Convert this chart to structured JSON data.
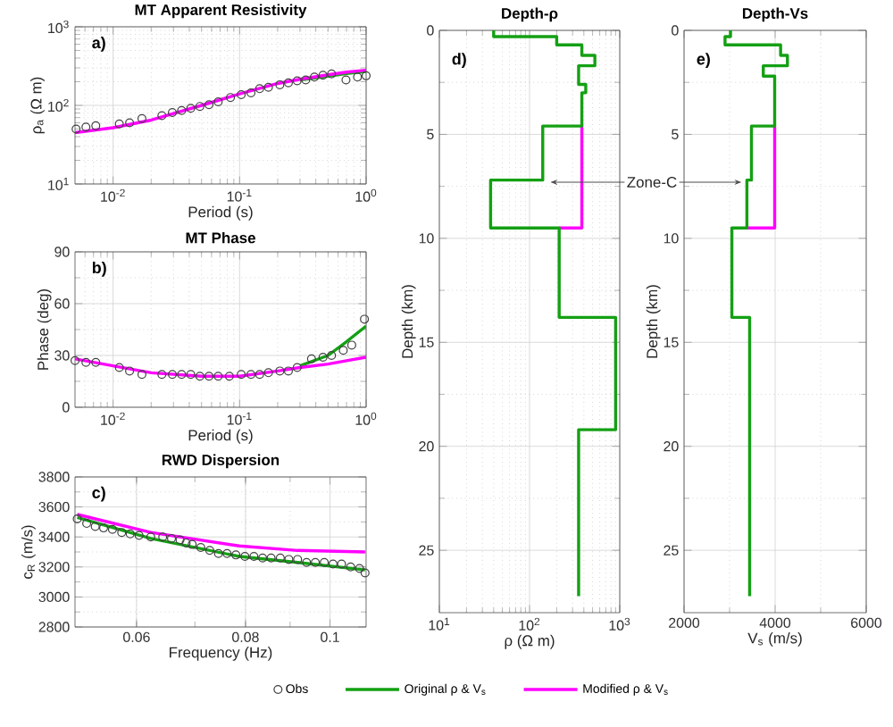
{
  "chart_data": [
    {
      "type": "line",
      "title": "MT Apparent Resistivity",
      "xlabel": "Period (s)",
      "ylabel": "ρ$_{a}$ (Ω m)",
      "annotations": [
        "a)"
      ],
      "log": "xy",
      "grid": true,
      "legend": "bottom",
      "xlim": [
        0.005,
        1
      ],
      "xticks": [
        {
          "value": 0.01,
          "label": "10$^{-2}$"
        },
        {
          "value": 0.1,
          "label": "10$^{-1}$"
        },
        {
          "value": 1,
          "label": "10$^{0}$"
        }
      ],
      "ylim": [
        10,
        1000
      ],
      "yticks": [
        {
          "value": 10,
          "label": "10$^{1}$"
        },
        {
          "value": 100,
          "label": "10$^{2}$"
        },
        {
          "value": 1000,
          "label": "10$^{3}$"
        }
      ],
      "series": [
        {
          "name": "Obs",
          "type": "scatter",
          "marker": "circle",
          "color": "#404040",
          "x": [
            0.0051,
            0.0061,
            0.0073,
            0.0112,
            0.0135,
            0.0169,
            0.0243,
            0.0294,
            0.0348,
            0.0411,
            0.0485,
            0.0573,
            0.0677,
            0.0847,
            0.103,
            0.123,
            0.144,
            0.169,
            0.208,
            0.243,
            0.285,
            0.333,
            0.39,
            0.456,
            0.533,
            0.693,
            0.855,
            1.0
          ],
          "values": [
            50,
            53,
            55,
            58,
            60,
            68,
            74,
            81,
            86,
            92,
            97,
            102,
            111,
            126,
            137,
            144,
            163,
            170,
            183,
            194,
            205,
            211,
            229,
            242,
            251,
            211,
            229,
            238
          ]
        },
        {
          "name": "Original ρ & V$_{s}$",
          "color": "#14a014",
          "x": [
            0.3,
            0.5,
            0.7,
            1.0
          ],
          "values": [
            210,
            235,
            255,
            270
          ]
        },
        {
          "name": "Modified ρ & V$_{s}$",
          "color": "#ff00ff",
          "x": [
            0.005,
            0.01,
            0.02,
            0.05,
            0.1,
            0.2,
            0.3,
            0.5,
            0.7,
            1.0
          ],
          "values": [
            45,
            52,
            65,
            100,
            140,
            190,
            215,
            245,
            265,
            280
          ]
        }
      ]
    },
    {
      "type": "line",
      "title": "MT Phase",
      "xlabel": "Period (s)",
      "ylabel": "Phase (deg)",
      "annotations": [
        "b)"
      ],
      "log": "x",
      "grid": true,
      "xlim": [
        0.005,
        1
      ],
      "xticks": [
        {
          "value": 0.01,
          "label": "10$^{-2}$"
        },
        {
          "value": 0.1,
          "label": "10$^{-1}$"
        },
        {
          "value": 1,
          "label": "10$^{0}$"
        }
      ],
      "ylim": [
        0,
        90
      ],
      "yticks": [
        0,
        30,
        60,
        90
      ],
      "series": [
        {
          "type": "scatter",
          "marker": "circle",
          "color": "#404040",
          "x": [
            0.005,
            0.0061,
            0.0073,
            0.0112,
            0.0135,
            0.0169,
            0.0243,
            0.0294,
            0.0348,
            0.0411,
            0.0485,
            0.0573,
            0.0677,
            0.083,
            0.103,
            0.123,
            0.144,
            0.169,
            0.208,
            0.243,
            0.285,
            0.37,
            0.456,
            0.533,
            0.66,
            0.77,
            0.97
          ],
          "values": [
            27,
            26,
            26,
            23,
            21,
            19,
            19,
            19,
            19,
            19,
            18,
            18,
            18,
            18,
            19,
            19,
            19,
            20,
            21,
            21,
            23,
            28,
            29,
            30,
            33,
            36,
            51
          ]
        },
        {
          "color": "#14a014",
          "x": [
            0.3,
            0.5,
            0.7,
            1.0
          ],
          "values": [
            24,
            30,
            38,
            47
          ]
        },
        {
          "color": "#ff00ff",
          "x": [
            0.005,
            0.01,
            0.02,
            0.05,
            0.1,
            0.2,
            0.3,
            0.5,
            0.7,
            1.0
          ],
          "values": [
            28,
            24,
            20,
            18,
            18,
            21,
            23,
            25,
            27,
            29
          ]
        }
      ]
    },
    {
      "type": "line",
      "title": "RWD Dispersion",
      "xlabel": "Frequency (Hz)",
      "ylabel": "c$_{R}$ (m/s)",
      "annotations": [
        "c)"
      ],
      "log": "x",
      "grid": true,
      "xlim": [
        0.051,
        0.11
      ],
      "xticks": [
        0.06,
        0.08,
        0.1
      ],
      "ylim": [
        2800,
        3800
      ],
      "yticks": [
        2800,
        3000,
        3200,
        3400,
        3600,
        3800
      ],
      "series": [
        {
          "type": "scatter",
          "marker": "circle",
          "color": "#404040",
          "x": [
            0.0513,
            0.0526,
            0.0538,
            0.055,
            0.0563,
            0.0577,
            0.059,
            0.0604,
            0.0623,
            0.0643,
            0.0658,
            0.0673,
            0.0684,
            0.0695,
            0.0711,
            0.0728,
            0.0745,
            0.0762,
            0.078,
            0.0799,
            0.0818,
            0.0837,
            0.0856,
            0.0877,
            0.0897,
            0.0918,
            0.094,
            0.0962,
            0.0985,
            0.1008,
            0.1031,
            0.1056,
            0.1081,
            0.1097
          ],
          "values": [
            3520,
            3490,
            3470,
            3460,
            3450,
            3430,
            3420,
            3410,
            3400,
            3400,
            3390,
            3380,
            3360,
            3350,
            3330,
            3310,
            3290,
            3290,
            3280,
            3270,
            3270,
            3260,
            3260,
            3260,
            3250,
            3250,
            3230,
            3230,
            3230,
            3220,
            3220,
            3200,
            3190,
            3160
          ]
        },
        {
          "color": "#14a014",
          "x": [
            0.0513,
            0.0623,
            0.0787,
            0.0918,
            0.1097
          ],
          "values": [
            3530,
            3390,
            3270,
            3230,
            3180
          ]
        },
        {
          "color": "#ff00ff",
          "x": [
            0.0513,
            0.0623,
            0.0787,
            0.0918,
            0.1097
          ],
          "values": [
            3550,
            3430,
            3340,
            3310,
            3300
          ]
        }
      ]
    },
    {
      "type": "line",
      "title": "Depth-ρ",
      "xlabel": "ρ (Ω m)",
      "ylabel": "Depth (km)",
      "annotations": [
        "d)",
        {
          "text": "Zone-C",
          "x": 170,
          "y": 7.3
        }
      ],
      "log": "x",
      "grid": true,
      "xlim": [
        10,
        1000
      ],
      "xticks": [
        {
          "value": 10,
          "label": "10$^{1}$"
        },
        {
          "value": 100,
          "label": "10$^{2}$"
        },
        {
          "value": 1000,
          "label": "10$^{3}$"
        }
      ],
      "ylim": [
        28,
        0
      ],
      "yticks": [
        0,
        5,
        10,
        15,
        20,
        25
      ],
      "series": [
        {
          "color": "#ff00ff",
          "x": [
            380,
            380,
            213
          ],
          "values": [
            4.6,
            9.5,
            9.5
          ]
        },
        {
          "color": "#14a014",
          "x": [
            40,
            40,
            200,
            200,
            380,
            380,
            530,
            530,
            350,
            350,
            420,
            420,
            380,
            380,
            140,
            140,
            37,
            37,
            213,
            213,
            900,
            900,
            350,
            350
          ],
          "values": [
            0,
            0.3,
            0.3,
            0.7,
            0.7,
            1.2,
            1.2,
            1.7,
            1.7,
            2.6,
            2.6,
            3.0,
            3.0,
            4.6,
            4.6,
            7.2,
            7.2,
            9.5,
            9.5,
            13.8,
            13.8,
            19.2,
            19.2,
            27.2
          ]
        }
      ]
    },
    {
      "type": "line",
      "title": "Depth-Vs",
      "xlabel": "V$_{s}$ (m/s)",
      "ylabel": "Depth (km)",
      "annotations": [
        "e)"
      ],
      "grid": true,
      "xlim": [
        2000,
        6000
      ],
      "xticks": [
        2000,
        4000,
        6000
      ],
      "ylim": [
        28,
        0
      ],
      "yticks": [
        0,
        5,
        10,
        15,
        20,
        25
      ],
      "series": [
        {
          "color": "#ff00ff",
          "x": [
            3990,
            3990,
            3380
          ],
          "values": [
            4.6,
            9.5,
            9.5
          ]
        },
        {
          "color": "#14a014",
          "x": [
            3020,
            3020,
            2900,
            2900,
            4120,
            4120,
            4270,
            4270,
            3740,
            3740,
            3990,
            3990,
            3480,
            3480,
            3380,
            3380,
            3050,
            3050,
            3440,
            3440
          ],
          "values": [
            0,
            0.3,
            0.3,
            0.7,
            0.7,
            1.2,
            1.2,
            1.7,
            1.7,
            2.2,
            2.2,
            4.6,
            4.6,
            7.2,
            7.2,
            9.5,
            9.5,
            13.8,
            13.8,
            27.2
          ]
        }
      ]
    }
  ]
}
